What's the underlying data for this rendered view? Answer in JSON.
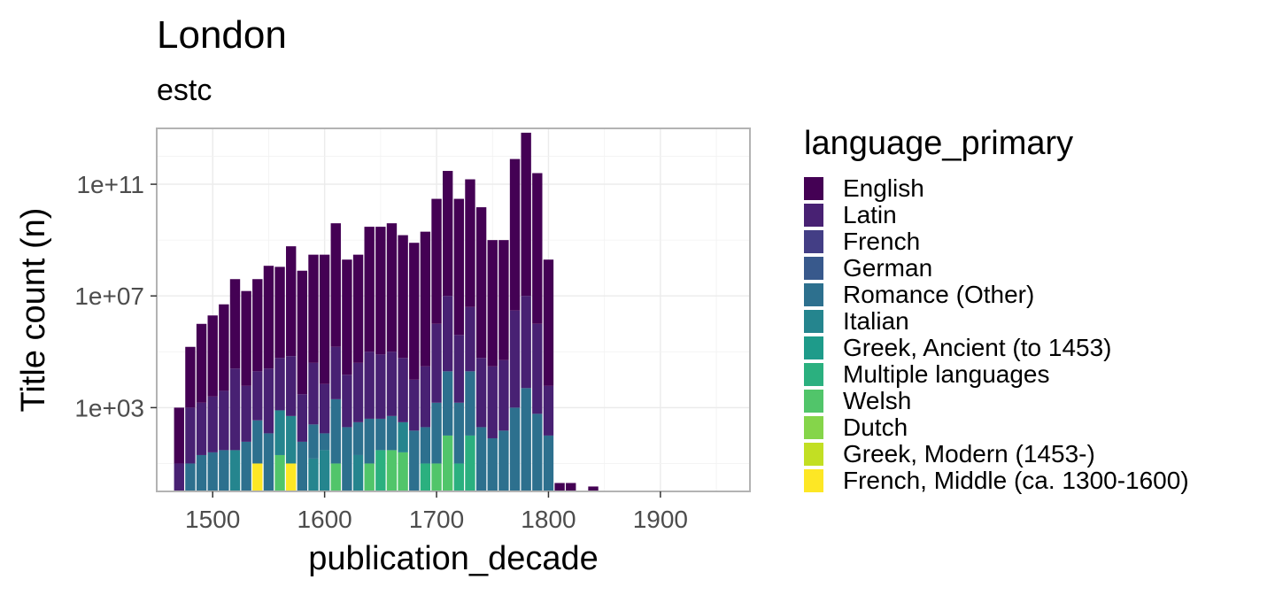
{
  "chart_data": {
    "type": "bar",
    "stacked": true,
    "title": "London",
    "subtitle": "estc",
    "xlabel": "publication_decade",
    "ylabel": "Title count (n)",
    "y_scale": "log10",
    "ylim": [
      1,
      10000000000000
    ],
    "xlim": [
      1450,
      1980
    ],
    "x_ticks": [
      1500,
      1600,
      1700,
      1800,
      1900
    ],
    "x_tick_labels": [
      "1500",
      "1600",
      "1700",
      "1800",
      "1900"
    ],
    "y_ticks": [
      1000,
      10000000,
      100000000000
    ],
    "y_tick_labels": [
      "1e+03",
      "1e+07",
      "1e+11"
    ],
    "grid": true,
    "legend_title": "language_primary",
    "legend_position": "right",
    "series": [
      {
        "name": "English",
        "color": "#440154"
      },
      {
        "name": "Latin",
        "color": "#482173"
      },
      {
        "name": "French",
        "color": "#433E85"
      },
      {
        "name": "German",
        "color": "#38598C"
      },
      {
        "name": "Romance (Other)",
        "color": "#2D708E"
      },
      {
        "name": "Italian",
        "color": "#25858E"
      },
      {
        "name": "Greek, Ancient (to 1453)",
        "color": "#1E9B8A"
      },
      {
        "name": "Multiple languages",
        "color": "#2BB07F"
      },
      {
        "name": "Welsh",
        "color": "#51C56A"
      },
      {
        "name": "Dutch",
        "color": "#85D54A"
      },
      {
        "name": "Greek, Modern (1453-)",
        "color": "#C2DF23"
      },
      {
        "name": "French, Middle (ca. 1300-1600)",
        "color": "#FDE725"
      }
    ],
    "bars": [
      {
        "x": 1470,
        "stack": [
          [
            "Latin",
            10
          ],
          [
            "English",
            1000
          ]
        ]
      },
      {
        "x": 1480,
        "stack": [
          [
            "Romance (Other)",
            10
          ],
          [
            "Latin",
            1000
          ],
          [
            "English",
            150000.0
          ]
        ]
      },
      {
        "x": 1490,
        "stack": [
          [
            "Romance (Other)",
            20
          ],
          [
            "Latin",
            1500
          ],
          [
            "English",
            1000000.0
          ]
        ]
      },
      {
        "x": 1500,
        "stack": [
          [
            "Romance (Other)",
            25
          ],
          [
            "Latin",
            2500
          ],
          [
            "English",
            2000000.0
          ]
        ]
      },
      {
        "x": 1510,
        "stack": [
          [
            "Romance (Other)",
            30
          ],
          [
            "Latin",
            4000
          ],
          [
            "English",
            5000000.0
          ]
        ]
      },
      {
        "x": 1520,
        "stack": [
          [
            "Italian",
            30
          ],
          [
            "Latin",
            25000
          ],
          [
            "English",
            40000000.0
          ]
        ]
      },
      {
        "x": 1530,
        "stack": [
          [
            "Romance (Other)",
            60
          ],
          [
            "Latin",
            6000
          ],
          [
            "English",
            15000000.0
          ]
        ]
      },
      {
        "x": 1540,
        "stack": [
          [
            "French, Middle (ca. 1300-1600)",
            10
          ],
          [
            "Romance (Other)",
            350
          ],
          [
            "Latin",
            20000
          ],
          [
            "English",
            40000000.0
          ]
        ]
      },
      {
        "x": 1550,
        "stack": [
          [
            "Romance (Other)",
            120
          ],
          [
            "Latin",
            25000
          ],
          [
            "English",
            120000000.0
          ]
        ]
      },
      {
        "x": 1560,
        "stack": [
          [
            "Welsh",
            20
          ],
          [
            "Italian",
            800
          ],
          [
            "Latin",
            60000
          ],
          [
            "English",
            110000000.0
          ]
        ]
      },
      {
        "x": 1570,
        "stack": [
          [
            "French, Middle (ca. 1300-1600)",
            10
          ],
          [
            "Italian",
            500
          ],
          [
            "Latin",
            70000
          ],
          [
            "English",
            600000000.0
          ]
        ]
      },
      {
        "x": 1580,
        "stack": [
          [
            "Romance (Other)",
            60
          ],
          [
            "Latin",
            3000
          ],
          [
            "English",
            80000000.0
          ]
        ]
      },
      {
        "x": 1590,
        "stack": [
          [
            "Italian",
            15
          ],
          [
            "Romance (Other)",
            250
          ],
          [
            "Latin",
            40000
          ],
          [
            "English",
            300000000.0
          ]
        ]
      },
      {
        "x": 1600,
        "stack": [
          [
            "Italian",
            30
          ],
          [
            "Romance (Other)",
            120
          ],
          [
            "Latin",
            7000
          ],
          [
            "English",
            300000000.0
          ]
        ]
      },
      {
        "x": 1610,
        "stack": [
          [
            "Welsh",
            10
          ],
          [
            "Romance (Other)",
            2000
          ],
          [
            "Latin",
            150000.0
          ],
          [
            "English",
            4000000000.0
          ]
        ]
      },
      {
        "x": 1620,
        "stack": [
          [
            "Romance (Other)",
            200
          ],
          [
            "Latin",
            15000
          ],
          [
            "English",
            200000000.0
          ]
        ]
      },
      {
        "x": 1630,
        "stack": [
          [
            "Italian",
            20
          ],
          [
            "Romance (Other)",
            300
          ],
          [
            "Latin",
            40000
          ],
          [
            "English",
            300000000.0
          ]
        ]
      },
      {
        "x": 1640,
        "stack": [
          [
            "Welsh",
            10
          ],
          [
            "Romance (Other)",
            400
          ],
          [
            "Latin",
            100000.0
          ],
          [
            "English",
            3000000000.0
          ]
        ]
      },
      {
        "x": 1650,
        "stack": [
          [
            "Multiple languages",
            30
          ],
          [
            "Romance (Other)",
            400
          ],
          [
            "Latin",
            80000
          ],
          [
            "English",
            3000000000.0
          ]
        ]
      },
      {
        "x": 1660,
        "stack": [
          [
            "Welsh",
            30
          ],
          [
            "Romance (Other)",
            500
          ],
          [
            "Latin",
            100000.0
          ],
          [
            "English",
            4000000000.0
          ]
        ]
      },
      {
        "x": 1670,
        "stack": [
          [
            "Welsh",
            25
          ],
          [
            "Italian",
            300
          ],
          [
            "Latin",
            60000
          ],
          [
            "English",
            1500000000.0
          ]
        ]
      },
      {
        "x": 1680,
        "stack": [
          [
            "Romance (Other)",
            150
          ],
          [
            "Latin",
            10000
          ],
          [
            "English",
            800000000.0
          ]
        ]
      },
      {
        "x": 1690,
        "stack": [
          [
            "Multiple languages",
            10
          ],
          [
            "Romance (Other)",
            200
          ],
          [
            "Latin",
            30000
          ],
          [
            "English",
            2000000000.0
          ]
        ]
      },
      {
        "x": 1700,
        "stack": [
          [
            "Welsh",
            10
          ],
          [
            "Romance (Other)",
            1500
          ],
          [
            "Latin",
            1000000.0
          ],
          [
            "English",
            30000000000.0
          ]
        ]
      },
      {
        "x": 1710,
        "stack": [
          [
            "Welsh",
            100
          ],
          [
            "Romance (Other)",
            20000
          ],
          [
            "Latin",
            10000000.0
          ],
          [
            "English",
            300000000000.0
          ]
        ]
      },
      {
        "x": 1720,
        "stack": [
          [
            "Multiple languages",
            10
          ],
          [
            "Romance (Other)",
            1500
          ],
          [
            "Latin",
            400000.0
          ],
          [
            "English",
            30000000000.0
          ]
        ]
      },
      {
        "x": 1730,
        "stack": [
          [
            "Multiple languages",
            100
          ],
          [
            "Romance (Other)",
            20000
          ],
          [
            "Latin",
            4000000.0
          ],
          [
            "English",
            150000000000.0
          ]
        ]
      },
      {
        "x": 1740,
        "stack": [
          [
            "Romance (Other)",
            200
          ],
          [
            "Latin",
            60000
          ],
          [
            "English",
            15000000000.0
          ]
        ]
      },
      {
        "x": 1750,
        "stack": [
          [
            "Romance (Other)",
            80
          ],
          [
            "Latin",
            30000
          ],
          [
            "English",
            1000000000.0
          ]
        ]
      },
      {
        "x": 1760,
        "stack": [
          [
            "Romance (Other)",
            150
          ],
          [
            "Latin",
            50000
          ],
          [
            "English",
            1000000000.0
          ]
        ]
      },
      {
        "x": 1770,
        "stack": [
          [
            "Romance (Other)",
            1000
          ],
          [
            "Latin",
            3000000.0
          ],
          [
            "English",
            800000000000.0
          ]
        ]
      },
      {
        "x": 1780,
        "stack": [
          [
            "Romance (Other)",
            5000
          ],
          [
            "Latin",
            10000000.0
          ],
          [
            "English",
            7000000000000.0
          ]
        ]
      },
      {
        "x": 1790,
        "stack": [
          [
            "Romance (Other)",
            600
          ],
          [
            "Latin",
            1000000.0
          ],
          [
            "English",
            250000000000.0
          ]
        ]
      },
      {
        "x": 1800,
        "stack": [
          [
            "Romance (Other)",
            100
          ],
          [
            "Latin",
            6000
          ],
          [
            "English",
            200000000.0
          ]
        ]
      },
      {
        "x": 1810,
        "stack": [
          [
            "English",
            2
          ]
        ]
      },
      {
        "x": 1820,
        "stack": [
          [
            "English",
            2
          ]
        ]
      },
      {
        "x": 1840,
        "stack": [
          [
            "English",
            1.5
          ]
        ]
      }
    ]
  }
}
